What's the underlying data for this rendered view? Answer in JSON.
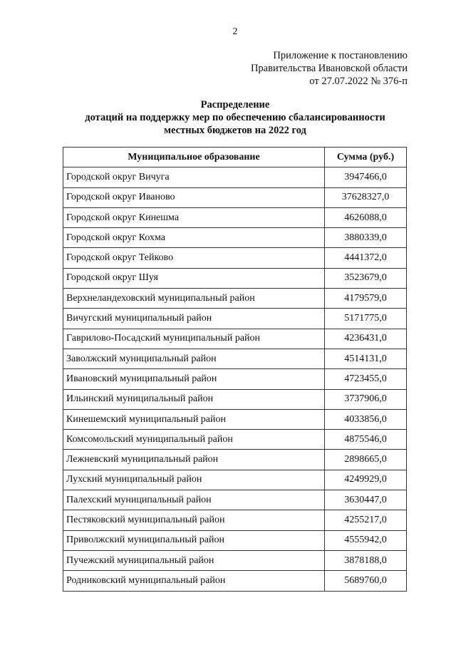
{
  "page_number": "2",
  "appendix": [
    "Приложение к постановлению",
    "Правительства Ивановской области",
    "от 27.07.2022 № 376-п"
  ],
  "title": [
    "Распределение",
    "дотаций на поддержку мер по обеспечению сбалансированности",
    "местных бюджетов на 2022 год"
  ],
  "table": {
    "headers": [
      "Муниципальное образование",
      "Сумма (руб.)"
    ],
    "rows": [
      [
        "Городской округ Вичуга",
        "3947466,0"
      ],
      [
        "Городской округ Иваново",
        "37628327,0"
      ],
      [
        "Городской округ Кинешма",
        "4626088,0"
      ],
      [
        "Городской округ Кохма",
        "3880339,0"
      ],
      [
        "Городской округ Тейково",
        "4441372,0"
      ],
      [
        "Городской округ Шуя",
        "3523679,0"
      ],
      [
        "Верхнеландеховский муниципальный район",
        "4179579,0"
      ],
      [
        "Вичугский муниципальный район",
        "5171775,0"
      ],
      [
        "Гаврилово-Посадский муниципальный район",
        "4236431,0"
      ],
      [
        "Заволжский муниципальный район",
        "4514131,0"
      ],
      [
        "Ивановский муниципальный район",
        "4723455,0"
      ],
      [
        "Ильинский муниципальный район",
        "3737906,0"
      ],
      [
        "Кинешемский муниципальный район",
        "4033856,0"
      ],
      [
        "Комсомольский муниципальный район",
        "4875546,0"
      ],
      [
        "Лежневский муниципальный район",
        "2898665,0"
      ],
      [
        "Лухский муниципальный район",
        "4249929,0"
      ],
      [
        "Палехский муниципальный район",
        "3630447,0"
      ],
      [
        "Пестяковский муниципальный район",
        "4255217,0"
      ],
      [
        "Приволжский муниципальный район",
        "4555942,0"
      ],
      [
        "Пучежский муниципальный район",
        "3878188,0"
      ],
      [
        "Родниковский муниципальный район",
        "5689760,0"
      ]
    ]
  }
}
